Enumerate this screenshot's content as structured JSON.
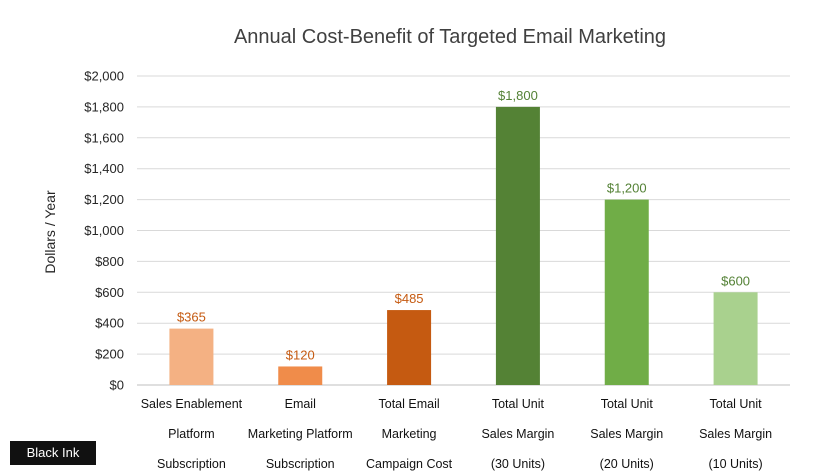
{
  "chart_data": {
    "type": "bar",
    "title": "Annual Cost-Benefit of Targeted Email Marketing",
    "ylabel": "Dollars / Year",
    "xlabel": "",
    "ylim": [
      0,
      2000
    ],
    "ytick_step": 200,
    "ytick_labels": [
      "$0",
      "$200",
      "$400",
      "$600",
      "$800",
      "$1,000",
      "$1,200",
      "$1,400",
      "$1,600",
      "$1,800",
      "$2,000"
    ],
    "grid": true,
    "categories": [
      [
        "Sales Enablement",
        "Platform",
        "Subscription"
      ],
      [
        "Email",
        "Marketing Platform",
        "Subscription"
      ],
      [
        "Total Email",
        "Marketing",
        "Campaign Cost"
      ],
      [
        "Total Unit",
        "Sales Margin",
        "(30 Units)"
      ],
      [
        "Total Unit",
        "Sales Margin",
        "(20 Units)"
      ],
      [
        "Total Unit",
        "Sales Margin",
        "(10 Units)"
      ]
    ],
    "values": [
      365,
      120,
      485,
      1800,
      1200,
      600
    ],
    "data_labels": [
      "$365",
      "$120",
      "$485",
      "$1,800",
      "$1,200",
      "$600"
    ],
    "bar_colors": [
      "#F4B183",
      "#F08C4A",
      "#C55A11",
      "#548235",
      "#70AD47",
      "#A9D18E"
    ],
    "label_colors": [
      "#C55A11",
      "#C55A11",
      "#C55A11",
      "#538135",
      "#538135",
      "#538135"
    ]
  },
  "logo": {
    "text": "Black Ink"
  }
}
